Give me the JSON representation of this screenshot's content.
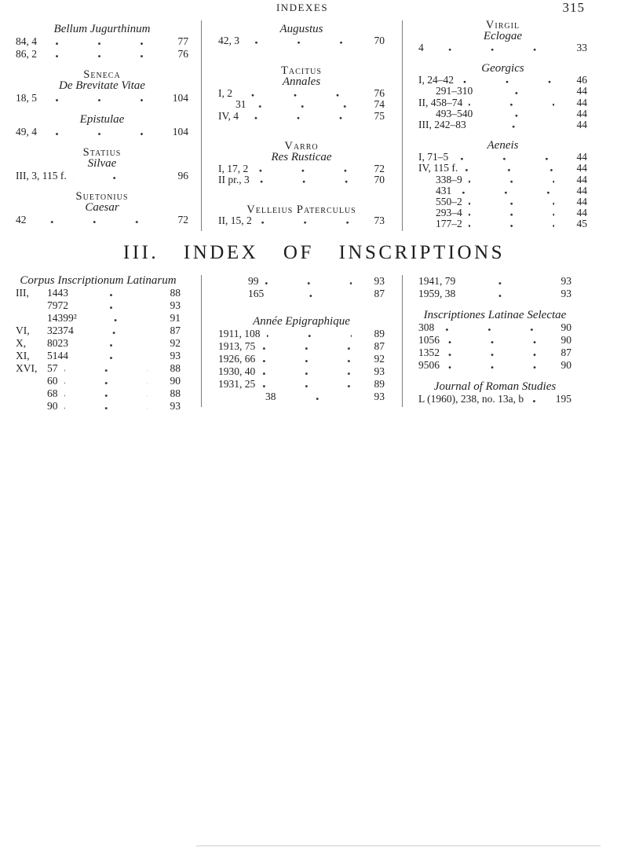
{
  "header": {
    "running_title": "INDEXES",
    "page_number": "315"
  },
  "inscriptions_heading": "III. INDEX OF INSCRIPTIONS",
  "authors_section": {
    "columns": [
      {
        "blocks": [
          {
            "work": "Bellum Jugurthinum",
            "rows": [
              {
                "entry": "84, 4",
                "page": "77"
              },
              {
                "entry": "86, 2",
                "page": "76"
              }
            ]
          },
          {
            "author": "Seneca",
            "work": "De Brevitate Vitae",
            "rows": [
              {
                "entry": "18, 5",
                "page": "104"
              }
            ]
          },
          {
            "work": "Epistulae",
            "rows": [
              {
                "entry": "49, 4",
                "page": "104"
              }
            ]
          },
          {
            "author": "Statius",
            "work": "Silvae",
            "rows": [
              {
                "entry": "III, 3, 115 f.",
                "page": "96"
              }
            ]
          },
          {
            "author": "Suetonius",
            "work": "Caesar",
            "rows": [
              {
                "entry": "42",
                "page": "72"
              }
            ]
          }
        ]
      },
      {
        "blocks": [
          {
            "work": "Augustus",
            "rows": [
              {
                "entry": "42, 3",
                "page": "70"
              }
            ]
          },
          {
            "author": "Tacitus",
            "work": "Annales",
            "rows": [
              {
                "entry": "I, 2",
                "page": "76"
              },
              {
                "entry": "31",
                "page": "74",
                "indent": 1
              },
              {
                "entry": "IV, 4",
                "page": "75"
              }
            ]
          },
          {
            "author": "Varro",
            "work": "Res Rusticae",
            "rows": [
              {
                "entry": "I, 17, 2",
                "page": "72"
              },
              {
                "entry": "II pr., 3",
                "page": "70"
              }
            ]
          },
          {
            "author": "Velleius Paterculus",
            "rows": [
              {
                "entry": "II, 15, 2",
                "page": "73"
              }
            ]
          }
        ]
      },
      {
        "blocks": [
          {
            "author": "Virgil",
            "work": "Eclogae",
            "rows": [
              {
                "entry": "4",
                "page": "33"
              }
            ]
          },
          {
            "work": "Georgics",
            "rows": [
              {
                "entry": "I, 24–42",
                "page": "46"
              },
              {
                "entry": "291–310",
                "page": "44",
                "indent": 1
              },
              {
                "entry": "II, 458–74",
                "page": "44"
              },
              {
                "entry": "493–540",
                "page": "44",
                "indent": 1
              },
              {
                "entry": "III, 242–83",
                "page": "44"
              }
            ]
          },
          {
            "work": "Aeneis",
            "rows": [
              {
                "entry": "I, 71–5",
                "page": "44"
              },
              {
                "entry": "IV, 115 f.",
                "page": "44"
              },
              {
                "entry": "338–9",
                "page": "44",
                "indent": 1
              },
              {
                "entry": "431",
                "page": "44",
                "indent": 1
              },
              {
                "entry": "550–2",
                "page": "44",
                "indent": 1
              },
              {
                "entry": "293–4",
                "page": "44",
                "indent": 1
              },
              {
                "entry": "177–2",
                "page": "45",
                "indent": 1
              }
            ]
          }
        ]
      }
    ]
  },
  "inscriptions_section": {
    "columns": [
      {
        "blocks": [
          {
            "work": "Corpus Inscriptionum Latinarum",
            "rows": [
              {
                "label": "III,",
                "entry": "1443",
                "page": "88"
              },
              {
                "label": "",
                "entry": "7972",
                "page": "93"
              },
              {
                "label": "",
                "entry": "14399²",
                "page": "91"
              },
              {
                "label": "VI,",
                "entry": "32374",
                "page": "87"
              },
              {
                "label": "X,",
                "entry": "8023",
                "page": "92"
              },
              {
                "label": "XI,",
                "entry": "5144",
                "page": "93"
              },
              {
                "label": "XVI,",
                "entry": "57",
                "page": "88"
              },
              {
                "label": "",
                "entry": "60",
                "page": "90"
              },
              {
                "label": "",
                "entry": "68",
                "page": "88"
              },
              {
                "label": "",
                "entry": "90",
                "page": "93"
              }
            ]
          }
        ]
      },
      {
        "blocks": [
          {
            "rows": [
              {
                "entry": "99",
                "page": "93",
                "indent": 2
              },
              {
                "entry": "165",
                "page": "87",
                "indent": 2
              }
            ]
          },
          {
            "work": "Année Epigraphique",
            "rows": [
              {
                "entry": "1911, 108",
                "page": "89"
              },
              {
                "entry": "1913, 75",
                "page": "87"
              },
              {
                "entry": "1926, 66",
                "page": "92"
              },
              {
                "entry": "1930, 40",
                "page": "93"
              },
              {
                "entry": "1931, 25",
                "page": "89"
              },
              {
                "entry": "38",
                "page": "93",
                "indent": 3
              }
            ]
          }
        ]
      },
      {
        "blocks": [
          {
            "rows": [
              {
                "entry": "1941, 79",
                "page": "93"
              },
              {
                "entry": "1959, 38",
                "page": "93"
              }
            ]
          },
          {
            "work": "Inscriptiones Latinae Selectae",
            "rows": [
              {
                "entry": "308",
                "page": "90"
              },
              {
                "entry": "1056",
                "page": "90"
              },
              {
                "entry": "1352",
                "page": "87"
              },
              {
                "entry": "9506",
                "page": "90"
              }
            ]
          },
          {
            "work": "Journal of Roman Studies",
            "rows": [
              {
                "entry": "L (1960), 238, no. 13a, b",
                "page": "195"
              }
            ]
          }
        ]
      }
    ]
  }
}
